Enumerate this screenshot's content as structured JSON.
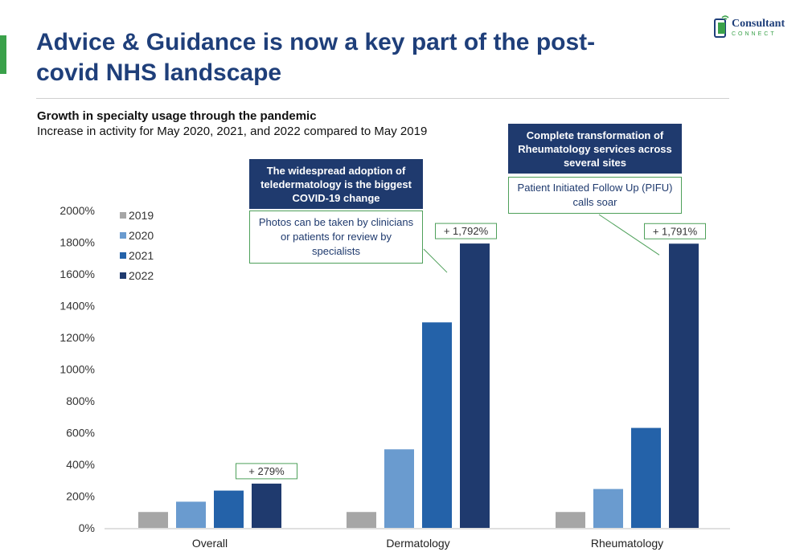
{
  "slide": {
    "title": "Advice & Guidance is now a key part of the post-covid NHS landscape",
    "accent_color": "#3aa14a",
    "title_color": "#1f3f7a"
  },
  "logo": {
    "wordmark": "Consultant",
    "submark": "CONNECT",
    "icon": "phone-speech-icon"
  },
  "chart_data": {
    "type": "bar",
    "title": "Growth in specialty usage through the pandemic",
    "subtitle": "Increase in activity for May 2020, 2021, and 2022 compared to May 2019",
    "categories": [
      "Overall",
      "Dermatology",
      "Rheumatology"
    ],
    "series": [
      {
        "name": "2019",
        "color": "#a6a6a6",
        "values": [
          100,
          100,
          100
        ]
      },
      {
        "name": "2020",
        "color": "#6a9bcf",
        "values": [
          165,
          495,
          245
        ]
      },
      {
        "name": "2021",
        "color": "#2462a9",
        "values": [
          235,
          1295,
          630
        ]
      },
      {
        "name": "2022",
        "color": "#1f3a6e",
        "values": [
          279,
          1792,
          1791
        ]
      }
    ],
    "yticks": [
      "0%",
      "200%",
      "400%",
      "600%",
      "800%",
      "1000%",
      "1200%",
      "1400%",
      "1600%",
      "1800%",
      "2000%"
    ],
    "ylim": [
      0,
      2000
    ],
    "legend_position": "top-left",
    "grid": false,
    "value_labels": [
      "+ 279%",
      "+ 1,792%",
      "+ 1,791%"
    ]
  },
  "callouts": {
    "dermatology": {
      "heading": "The widespread adoption of teledermatology is the biggest COVID-19 change",
      "body": "Photos can be taken by clinicians or patients for review by specialists"
    },
    "rheumatology": {
      "heading": "Complete transformation of Rheumatology services across several sites",
      "body": "Patient Initiated Follow Up (PIFU) calls soar"
    }
  }
}
